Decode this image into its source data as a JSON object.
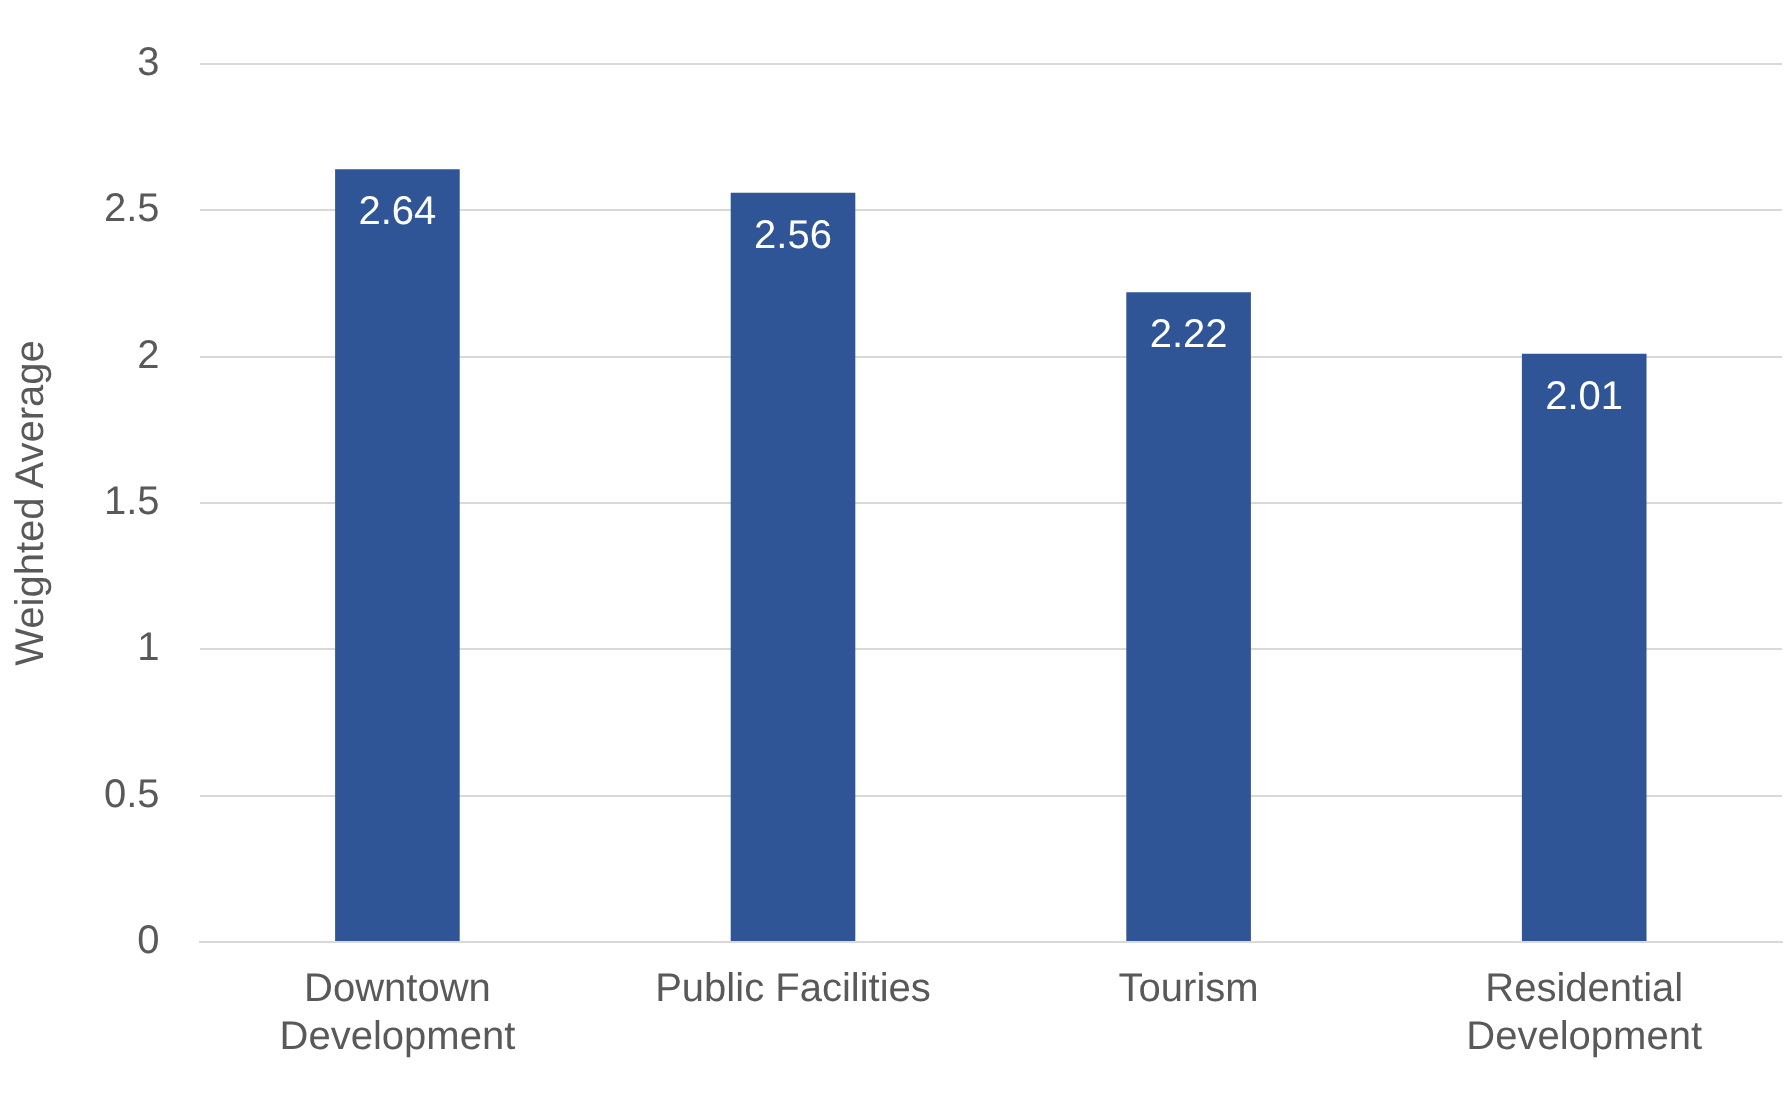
{
  "chart_data": {
    "type": "bar",
    "ylabel": "Weighted Average",
    "categories": [
      "Downtown Development",
      "Public Facilities",
      "Tourism",
      "Residential Development"
    ],
    "values": [
      2.64,
      2.56,
      2.22,
      2.01
    ],
    "color": "#2f5597",
    "ylim": [
      0,
      3
    ],
    "yticks": [
      0,
      0.5,
      1,
      1.5,
      2,
      2.5,
      3
    ],
    "grid": "y",
    "data_labels": true
  }
}
